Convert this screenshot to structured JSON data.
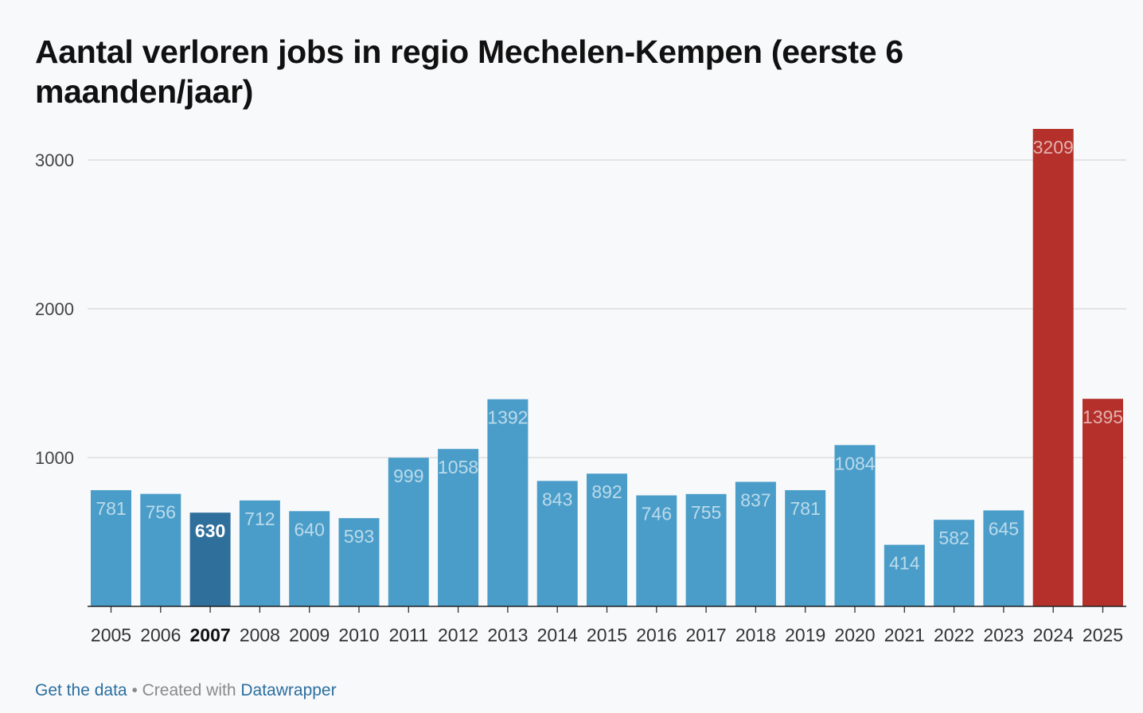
{
  "title": "Aantal verloren jobs in regio Mechelen-Kempen (eerste 6 maanden/jaar)",
  "footer": {
    "get_data": "Get the data",
    "separator": "•",
    "created_with": "Created with",
    "datawrapper": "Datawrapper"
  },
  "colors": {
    "default": "#4a9dc9",
    "highlight": "#2f6f9b",
    "recent": "#b5302a"
  },
  "chart_data": {
    "type": "bar",
    "categories": [
      "2005",
      "2006",
      "2007",
      "2008",
      "2009",
      "2010",
      "2011",
      "2012",
      "2013",
      "2014",
      "2015",
      "2016",
      "2017",
      "2018",
      "2019",
      "2020",
      "2021",
      "2022",
      "2023",
      "2024",
      "2025"
    ],
    "values": [
      781,
      756,
      630,
      712,
      640,
      593,
      999,
      1058,
      1392,
      843,
      892,
      746,
      755,
      837,
      781,
      1084,
      414,
      582,
      645,
      3209,
      1395
    ],
    "highlighted_category": "2007",
    "red_categories": [
      "2024",
      "2025"
    ],
    "title": "Aantal verloren jobs in regio Mechelen-Kempen (eerste 6 maanden/jaar)",
    "yticks": [
      1000,
      2000,
      3000
    ],
    "ylim": [
      0,
      3209
    ],
    "grid": true
  }
}
